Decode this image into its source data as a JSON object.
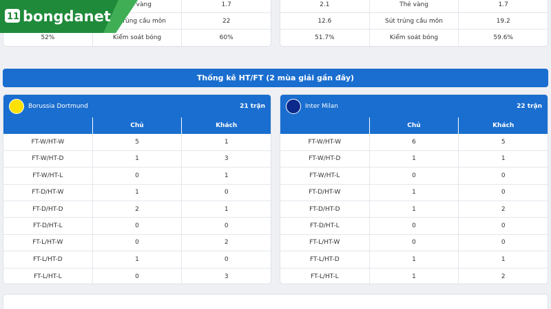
{
  "logo": "bongdanet",
  "top_stats": [
    {
      "rows": [
        {
          "label": "Thẻ vàng",
          "away": "1.7"
        },
        {
          "label": "Sút trúng cầu môn",
          "away": "22"
        },
        {
          "home": "52%",
          "label": "Kiểm soát bóng",
          "away": "60%"
        }
      ]
    },
    {
      "rows": [
        {
          "home": "2.1",
          "label": "Thẻ vàng",
          "away": "1.7"
        },
        {
          "home": "12.6",
          "label": "Sút trúng cầu môn",
          "away": "19.2"
        },
        {
          "home": "51.7%",
          "label": "Kiểm soát bóng",
          "away": "59.6%"
        }
      ]
    }
  ],
  "htft": {
    "title": "Thống kê HT/FT (2 mùa giải gần đây)",
    "teams": [
      {
        "name": "Borussia Dortmund",
        "matches": "21 trận",
        "columns": [
          "Chủ",
          "Khách"
        ],
        "rows": [
          {
            "label": "FT-W/HT-W",
            "home": 5,
            "away": 1
          },
          {
            "label": "FT-W/HT-D",
            "home": 1,
            "away": 3
          },
          {
            "label": "FT-W/HT-L",
            "home": 0,
            "away": 1
          },
          {
            "label": "FT-D/HT-W",
            "home": 1,
            "away": 0
          },
          {
            "label": "FT-D/HT-D",
            "home": 2,
            "away": 1
          },
          {
            "label": "FT-D/HT-L",
            "home": 0,
            "away": 0
          },
          {
            "label": "FT-L/HT-W",
            "home": 0,
            "away": 2
          },
          {
            "label": "FT-L/HT-D",
            "home": 1,
            "away": 0
          },
          {
            "label": "FT-L/HT-L",
            "home": 0,
            "away": 3
          }
        ]
      },
      {
        "name": "Inter Milan",
        "matches": "22 trận",
        "columns": [
          "Chủ",
          "Khách"
        ],
        "rows": [
          {
            "label": "FT-W/HT-W",
            "home": 6,
            "away": 5
          },
          {
            "label": "FT-W/HT-D",
            "home": 1,
            "away": 1
          },
          {
            "label": "FT-W/HT-L",
            "home": 0,
            "away": 0
          },
          {
            "label": "FT-D/HT-W",
            "home": 1,
            "away": 0
          },
          {
            "label": "FT-D/HT-D",
            "home": 1,
            "away": 2
          },
          {
            "label": "FT-D/HT-L",
            "home": 0,
            "away": 0
          },
          {
            "label": "FT-L/HT-W",
            "home": 0,
            "away": 0
          },
          {
            "label": "FT-L/HT-D",
            "home": 1,
            "away": 1
          },
          {
            "label": "FT-L/HT-L",
            "home": 1,
            "away": 2
          }
        ]
      }
    ]
  }
}
